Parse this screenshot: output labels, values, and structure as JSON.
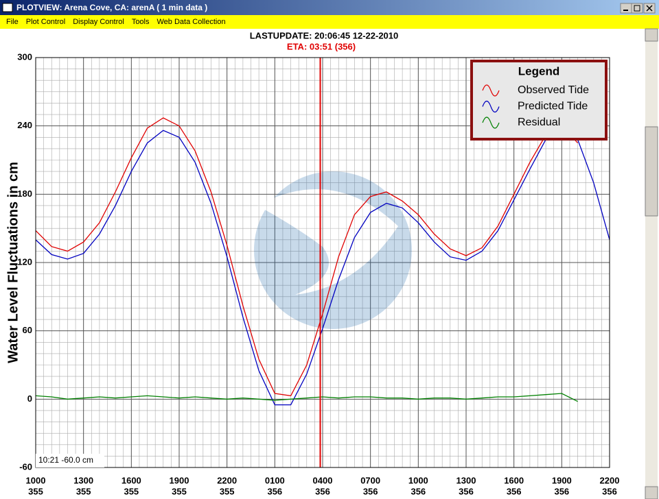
{
  "window": {
    "title": "PLOTVIEW:  Arena Cove, CA: arenA ( 1 min data )",
    "menu": [
      "File",
      "Plot Control",
      "Display Control",
      "Tools",
      "Web Data Collection"
    ],
    "lastupdate": "LASTUPDATE: 20:06:45  12-22-2010",
    "eta": "ETA: 03:51 (356)",
    "cursor_readout": "10:21 -60.0 cm"
  },
  "chart_data": {
    "type": "line",
    "y_label": "Water Level Fluctuations in cm",
    "legend_title": "Legend",
    "legend": "top-right",
    "grid": true,
    "xminor": 0.5,
    "yminor": 10,
    "xlim": [
      0,
      36
    ],
    "ylim": [
      -60,
      300
    ],
    "yticks": [
      -60,
      0,
      60,
      120,
      180,
      240,
      300
    ],
    "xticks": [
      {
        "value": 0,
        "label": "1000"
      },
      {
        "value": 3,
        "label": "1300"
      },
      {
        "value": 6,
        "label": "1600"
      },
      {
        "value": 9,
        "label": "1900"
      },
      {
        "value": 12,
        "label": "2200"
      },
      {
        "value": 15,
        "label": "0100"
      },
      {
        "value": 18,
        "label": "0400"
      },
      {
        "value": 21,
        "label": "0700"
      },
      {
        "value": 24,
        "label": "1000"
      },
      {
        "value": 27,
        "label": "1300"
      },
      {
        "value": 30,
        "label": "1600"
      },
      {
        "value": 33,
        "label": "1900"
      },
      {
        "value": 36,
        "label": "2200"
      }
    ],
    "xtick_days": [
      "355",
      "355",
      "355",
      "355",
      "355",
      "356",
      "356",
      "356",
      "356",
      "356",
      "356",
      "356",
      "356"
    ],
    "eta_line": {
      "x": 17.85,
      "color": "#e00000"
    },
    "series": [
      {
        "name": "Observed Tide",
        "color": "#e00000",
        "x": [
          0,
          1,
          2,
          3,
          4,
          5,
          6,
          7,
          8,
          9,
          10,
          11,
          12,
          13,
          14,
          15,
          16,
          17,
          18,
          19,
          20,
          21,
          22,
          23,
          24,
          25,
          26,
          27,
          28,
          29,
          30,
          31,
          32,
          33,
          34
        ],
        "values": [
          148,
          134,
          130,
          138,
          155,
          182,
          212,
          238,
          247,
          240,
          218,
          182,
          135,
          82,
          35,
          5,
          3,
          30,
          75,
          125,
          162,
          178,
          182,
          174,
          162,
          145,
          132,
          126,
          133,
          152,
          180,
          208,
          232,
          240,
          225
        ]
      },
      {
        "name": "Predicted Tide",
        "color": "#0000c0",
        "x": [
          0,
          1,
          2,
          3,
          4,
          5,
          6,
          7,
          8,
          9,
          10,
          11,
          12,
          13,
          14,
          15,
          16,
          17,
          18,
          19,
          20,
          21,
          22,
          23,
          24,
          25,
          26,
          27,
          28,
          29,
          30,
          31,
          32,
          33,
          34,
          35,
          36
        ],
        "values": [
          140,
          127,
          123,
          128,
          145,
          170,
          200,
          225,
          236,
          230,
          208,
          172,
          125,
          72,
          25,
          -5,
          -5,
          22,
          62,
          105,
          142,
          164,
          172,
          168,
          155,
          138,
          125,
          122,
          130,
          148,
          175,
          202,
          228,
          240,
          228,
          190,
          140
        ]
      },
      {
        "name": "Residual",
        "color": "#008000",
        "x": [
          0,
          1,
          2,
          3,
          4,
          5,
          6,
          7,
          8,
          9,
          10,
          11,
          12,
          13,
          14,
          15,
          16,
          17,
          18,
          19,
          20,
          21,
          22,
          23,
          24,
          25,
          26,
          27,
          28,
          29,
          30,
          31,
          32,
          33,
          34
        ],
        "values": [
          3,
          2,
          0,
          1,
          2,
          1,
          2,
          3,
          2,
          1,
          2,
          1,
          0,
          1,
          0,
          -1,
          0,
          1,
          2,
          1,
          2,
          2,
          1,
          1,
          0,
          1,
          1,
          0,
          1,
          2,
          2,
          3,
          4,
          5,
          -2
        ]
      }
    ]
  }
}
